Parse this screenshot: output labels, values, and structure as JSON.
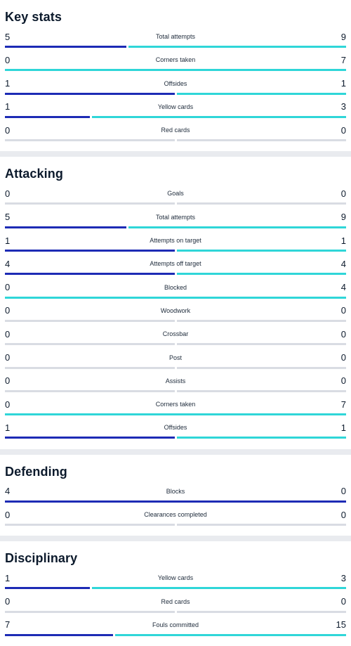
{
  "colors": {
    "home": "#1d2bb5",
    "away": "#2fd6d8",
    "empty": "#d9dce3"
  },
  "sections": [
    {
      "id": "key-stats",
      "title": "Key stats",
      "stats": [
        {
          "label": "Total attempts",
          "home": 5,
          "away": 9
        },
        {
          "label": "Corners taken",
          "home": 0,
          "away": 7
        },
        {
          "label": "Offsides",
          "home": 1,
          "away": 1
        },
        {
          "label": "Yellow cards",
          "home": 1,
          "away": 3
        },
        {
          "label": "Red cards",
          "home": 0,
          "away": 0
        }
      ]
    },
    {
      "id": "attacking",
      "title": "Attacking",
      "stats": [
        {
          "label": "Goals",
          "home": 0,
          "away": 0
        },
        {
          "label": "Total attempts",
          "home": 5,
          "away": 9
        },
        {
          "label": "Attempts on target",
          "home": 1,
          "away": 1
        },
        {
          "label": "Attempts off target",
          "home": 4,
          "away": 4
        },
        {
          "label": "Blocked",
          "home": 0,
          "away": 4
        },
        {
          "label": "Woodwork",
          "home": 0,
          "away": 0
        },
        {
          "label": "Crossbar",
          "home": 0,
          "away": 0
        },
        {
          "label": "Post",
          "home": 0,
          "away": 0
        },
        {
          "label": "Assists",
          "home": 0,
          "away": 0
        },
        {
          "label": "Corners taken",
          "home": 0,
          "away": 7
        },
        {
          "label": "Offsides",
          "home": 1,
          "away": 1
        }
      ]
    },
    {
      "id": "defending",
      "title": "Defending",
      "stats": [
        {
          "label": "Blocks",
          "home": 4,
          "away": 0
        },
        {
          "label": "Clearances completed",
          "home": 0,
          "away": 0
        }
      ]
    },
    {
      "id": "disciplinary",
      "title": "Disciplinary",
      "stats": [
        {
          "label": "Yellow cards",
          "home": 1,
          "away": 3
        },
        {
          "label": "Red cards",
          "home": 0,
          "away": 0
        },
        {
          "label": "Fouls committed",
          "home": 7,
          "away": 15
        }
      ]
    }
  ]
}
